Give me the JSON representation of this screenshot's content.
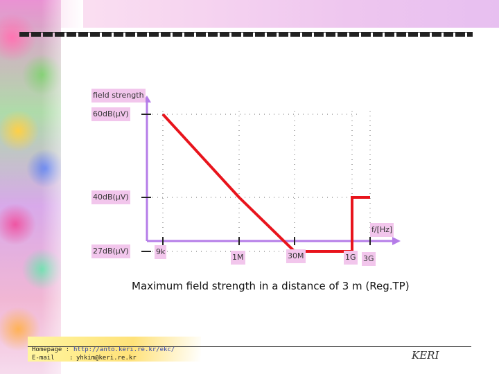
{
  "footer": {
    "homepage_label": "Homepage :",
    "homepage_url": "http://anto.keri.re.kr/ekc/",
    "email_label": "E-mail",
    "email_sep": ":",
    "email_value": "yhkim@keri.re.kr",
    "brand": "KERI"
  },
  "chart_data": {
    "type": "line",
    "title": "Maximum field strength in a distance of 3 m (Reg.TP)",
    "ylabel": "field strength",
    "xlabel": "f/[Hz]",
    "x_ticks": [
      "9k",
      "1M",
      "30M",
      "1G",
      "3G"
    ],
    "y_ticks": [
      "60dB(µV)",
      "40dB(µV)",
      "27dB(µV)"
    ],
    "series": [
      {
        "color": "#e8141c",
        "points": [
          {
            "x": "9k",
            "y": 60
          },
          {
            "x": "1M",
            "y": 40
          },
          {
            "x": "30M",
            "y": 27
          },
          {
            "x": "1G",
            "y": 27
          },
          {
            "x": "1G",
            "y": 40
          },
          {
            "x": "3G",
            "y": 40
          }
        ]
      }
    ],
    "grid": true,
    "axis_color": "#b57ce8",
    "colors": {
      "line": "#e8141c",
      "axis": "#b57ce8",
      "label_bg": "#f2c6ec"
    }
  }
}
